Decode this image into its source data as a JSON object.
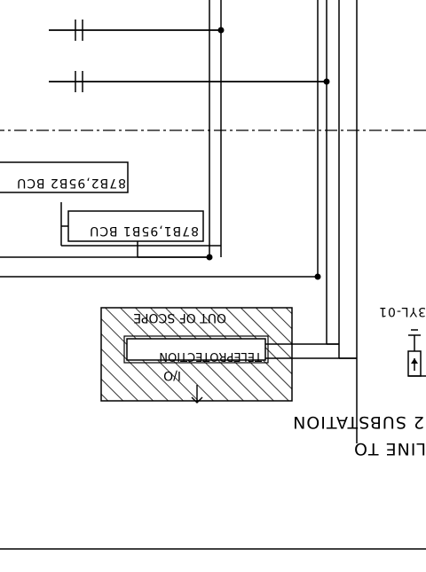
{
  "labels": {
    "bcu_1": "87B2,95B2 BCU",
    "bcu_2": "87B1,95B1 BCU",
    "out_of_scope": "OUT OF SCOPE",
    "teleprotection": "TELEPROTECTION",
    "io": "I/O",
    "ct_tag": "3YL-01",
    "line_to": "LINE TO",
    "substation": "2 SUBSTATION"
  }
}
